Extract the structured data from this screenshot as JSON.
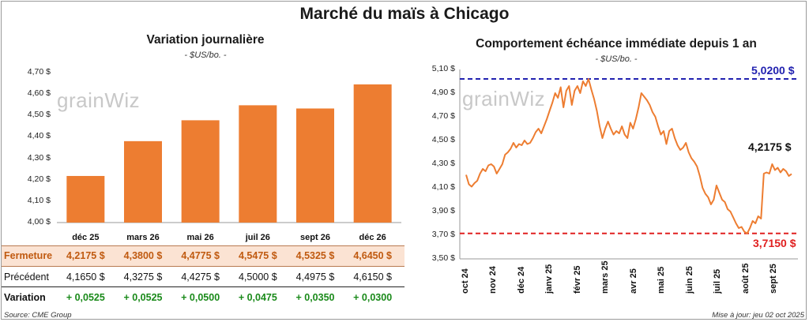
{
  "title": "Marché du maïs à Chicago",
  "source": "Source: CME Group",
  "updated": "Mise à jour: jeu 02 oct 2025",
  "watermark": "grainWiz",
  "chart_data": [
    {
      "type": "bar",
      "title": "Variation journalière",
      "unit": "- $US/bo. -",
      "categories": [
        "déc 25",
        "mars 26",
        "mai 26",
        "juil 26",
        "sept 26",
        "déc 26"
      ],
      "values": [
        4.2175,
        4.38,
        4.4775,
        4.5475,
        4.5325,
        4.645
      ],
      "ylim": [
        4.0,
        4.7
      ],
      "yticks": [
        "4,00 $",
        "4,10 $",
        "4,20 $",
        "4,30 $",
        "4,40 $",
        "4,50 $",
        "4,60 $",
        "4,70 $"
      ],
      "bar_color": "#ed7d31",
      "table": {
        "rows": [
          {
            "label": "Fermeture",
            "values": [
              "4,2175  $",
              "4,3800  $",
              "4,4775  $",
              "4,5475  $",
              "4,5325  $",
              "4,6450  $"
            ]
          },
          {
            "label": "Précédent",
            "values": [
              "4,1650  $",
              "4,3275  $",
              "4,4275  $",
              "4,5000  $",
              "4,4975  $",
              "4,6150  $"
            ]
          },
          {
            "label": "Variation",
            "values": [
              "+ 0,0525",
              "+ 0,0525",
              "+ 0,0500",
              "+ 0,0475",
              "+ 0,0350",
              "+ 0,0300"
            ]
          }
        ]
      }
    },
    {
      "type": "line",
      "title": "Comportement échéance immédiate depuis 1 an",
      "unit": "- $US/bo. -",
      "ylim": [
        3.5,
        5.1
      ],
      "yticks": [
        "3,50 $",
        "3,70 $",
        "3,90 $",
        "4,10 $",
        "4,30 $",
        "4,50 $",
        "4,70 $",
        "4,90 $",
        "5,10 $"
      ],
      "xticks": [
        "oct 24",
        "nov 24",
        "déc 24",
        "janv 25",
        "févr 25",
        "mars 25",
        "avr 25",
        "mai 25",
        "juin 25",
        "juil 25",
        "août 25",
        "sept 25"
      ],
      "line_color": "#ed7d31",
      "high": {
        "value": 5.02,
        "label": "5,0200 $",
        "color": "#2222b0"
      },
      "low": {
        "value": 3.715,
        "label": "3,7150 $",
        "color": "#e02020"
      },
      "last_label": "4,2175 $",
      "values": [
        4.21,
        4.13,
        4.11,
        4.14,
        4.16,
        4.22,
        4.26,
        4.24,
        4.29,
        4.3,
        4.28,
        4.22,
        4.26,
        4.3,
        4.38,
        4.4,
        4.43,
        4.48,
        4.44,
        4.47,
        4.46,
        4.5,
        4.47,
        4.48,
        4.52,
        4.57,
        4.6,
        4.56,
        4.62,
        4.68,
        4.75,
        4.82,
        4.9,
        4.86,
        4.95,
        4.78,
        4.92,
        4.96,
        4.8,
        4.92,
        4.96,
        4.9,
        5.0,
        4.96,
        5.02,
        4.93,
        4.85,
        4.75,
        4.62,
        4.52,
        4.6,
        4.66,
        4.6,
        4.55,
        4.58,
        4.56,
        4.62,
        4.55,
        4.52,
        4.65,
        4.6,
        4.68,
        4.78,
        4.9,
        4.87,
        4.84,
        4.8,
        4.74,
        4.7,
        4.62,
        4.55,
        4.58,
        4.47,
        4.58,
        4.6,
        4.52,
        4.46,
        4.42,
        4.44,
        4.48,
        4.4,
        4.35,
        4.32,
        4.28,
        4.2,
        4.1,
        4.05,
        4.02,
        3.96,
        4.0,
        4.12,
        4.06,
        4.0,
        3.98,
        3.92,
        3.9,
        3.85,
        3.8,
        3.76,
        3.77,
        3.73,
        3.715,
        3.76,
        3.82,
        3.8,
        3.86,
        3.84,
        4.22,
        4.23,
        4.22,
        4.3,
        4.25,
        4.27,
        4.23,
        4.26,
        4.24,
        4.2,
        4.2175
      ]
    }
  ]
}
